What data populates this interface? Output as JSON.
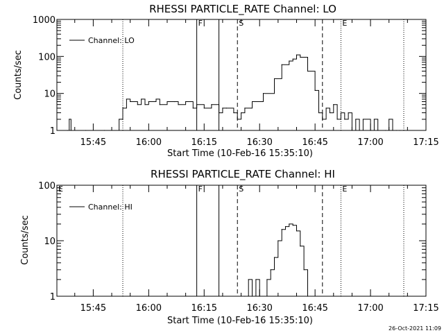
{
  "chart_data": [
    {
      "type": "line",
      "title": "RHESSI PARTICLE_RATE Channel: LO",
      "xlabel": "Start Time (10-Feb-16 15:35:10)",
      "ylabel": "Counts/sec",
      "ylog": true,
      "ylim": [
        1,
        1000
      ],
      "xlim": [
        "15:35:10",
        "17:15:00"
      ],
      "ytick_labels": [
        "1",
        "10",
        "100",
        "1000"
      ],
      "xtick_labels": [
        "15:45",
        "16:00",
        "16:15",
        "16:30",
        "16:45",
        "17:00",
        "17:15"
      ],
      "legend": {
        "label": "Channel: LO",
        "position": "top-left"
      },
      "markers": [
        {
          "time": "15:53",
          "style": "dotted",
          "label": ""
        },
        {
          "time": "16:13",
          "style": "solid",
          "label": "F"
        },
        {
          "time": "16:19",
          "style": "solid",
          "label": ""
        },
        {
          "time": "16:24",
          "style": "dashed",
          "label": "S"
        },
        {
          "time": "16:47",
          "style": "dashed",
          "label": ""
        },
        {
          "time": "16:52",
          "style": "dotted",
          "label": "E"
        },
        {
          "time": "17:09",
          "style": "dotted",
          "label": ""
        }
      ],
      "series": [
        {
          "x": [
            "15:38",
            "15:38.5",
            "15:39",
            "15:43",
            "15:48",
            "15:52",
            "15:53",
            "15:54",
            "15:55",
            "15:57",
            "15:58",
            "15:59",
            "16:00",
            "16:02",
            "16:03",
            "16:05",
            "16:07",
            "16:08",
            "16:10",
            "16:12",
            "16:13",
            "16:15",
            "16:17",
            "16:19",
            "16:20",
            "16:21",
            "16:23",
            "16:24",
            "16:25",
            "16:26",
            "16:28",
            "16:31",
            "16:34",
            "16:36",
            "16:38",
            "16:39",
            "16:40",
            "16:41",
            "16:43",
            "16:45",
            "16:46",
            "16:47",
            "16:48",
            "16:49",
            "16:50",
            "16:51",
            "16:52",
            "16:53",
            "16:54",
            "16:55",
            "16:56",
            "16:57",
            "16:58",
            "17:00",
            "17:01",
            "17:02",
            "17:04",
            "17:05",
            "17:06",
            "17:07",
            "17:08"
          ],
          "values": [
            1,
            2,
            1,
            1,
            1,
            2,
            4,
            7,
            6,
            5,
            7,
            5,
            6,
            7,
            5,
            6,
            6,
            5,
            6,
            4,
            5,
            4,
            5,
            3,
            4,
            4,
            3,
            2,
            3,
            4,
            6,
            10,
            25,
            60,
            75,
            85,
            110,
            95,
            40,
            12,
            3,
            2,
            4,
            3,
            5,
            2,
            3,
            2,
            3,
            1,
            2,
            1,
            2,
            1,
            2,
            1,
            1,
            2,
            1,
            1,
            1
          ]
        }
      ]
    },
    {
      "type": "line",
      "title": "RHESSI PARTICLE_RATE Channel: HI",
      "xlabel": "Start Time (10-Feb-16 15:35:10)",
      "ylabel": "Counts/sec",
      "ylog": true,
      "ylim": [
        1,
        100
      ],
      "xlim": [
        "15:35:10",
        "17:15:00"
      ],
      "ytick_labels": [
        "1",
        "10",
        "100"
      ],
      "xtick_labels": [
        "15:45",
        "16:00",
        "16:15",
        "16:30",
        "16:45",
        "17:00",
        "17:15"
      ],
      "legend": {
        "label": "Channel: HI",
        "position": "top-left"
      },
      "markers": [
        {
          "time": "15:35:10",
          "style": "none",
          "label": "E"
        },
        {
          "time": "15:53",
          "style": "dotted",
          "label": ""
        },
        {
          "time": "16:13",
          "style": "solid",
          "label": "F"
        },
        {
          "time": "16:19",
          "style": "solid",
          "label": ""
        },
        {
          "time": "16:24",
          "style": "dashed",
          "label": "S"
        },
        {
          "time": "16:47",
          "style": "dashed",
          "label": ""
        },
        {
          "time": "16:52",
          "style": "dotted",
          "label": "E"
        },
        {
          "time": "17:09",
          "style": "dotted",
          "label": ""
        }
      ],
      "series": [
        {
          "x": [
            "16:26",
            "16:27",
            "16:28",
            "16:29",
            "16:30",
            "16:32",
            "16:33",
            "16:34",
            "16:35",
            "16:36",
            "16:37",
            "16:38",
            "16:39",
            "16:40",
            "16:41",
            "16:42",
            "16:43"
          ],
          "values": [
            1,
            2,
            1,
            2,
            1,
            2,
            3,
            5,
            10,
            16,
            18,
            20,
            19,
            15,
            8,
            3,
            1
          ]
        }
      ]
    }
  ],
  "footer": {
    "timestamp": "26-Oct-2021 11:09"
  }
}
